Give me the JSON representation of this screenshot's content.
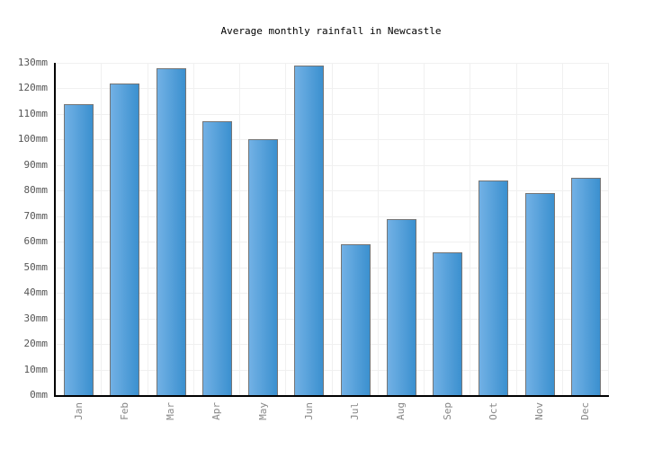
{
  "title": "Average monthly rainfall in Newcastle",
  "chart_data": {
    "type": "bar",
    "title": "Average monthly rainfall in Newcastle",
    "categories": [
      "Jan",
      "Feb",
      "Mar",
      "Apr",
      "May",
      "Jun",
      "Jul",
      "Aug",
      "Sep",
      "Oct",
      "Nov",
      "Dec"
    ],
    "values": [
      114,
      122,
      128,
      107,
      100,
      129,
      59,
      69,
      56,
      84,
      79,
      85
    ],
    "unit": "mm",
    "xlabel": "",
    "ylabel": "",
    "ylim": [
      0,
      130
    ],
    "ytick_step": 10,
    "ytick_labels": [
      "0mm",
      "10mm",
      "20mm",
      "30mm",
      "40mm",
      "50mm",
      "60mm",
      "70mm",
      "80mm",
      "90mm",
      "100mm",
      "110mm",
      "120mm",
      "130mm"
    ],
    "grid": true,
    "legend": false,
    "colors": {
      "bar_gradient_left": "#72b1e5",
      "bar_gradient_right": "#3b90cf",
      "bar_border": "#757575",
      "gridline": "#f0f0f0",
      "axis": "#000000",
      "ytick_color": "#555555",
      "xtick_color": "#888888",
      "title_color": "#000000",
      "background": "#ffffff"
    }
  }
}
